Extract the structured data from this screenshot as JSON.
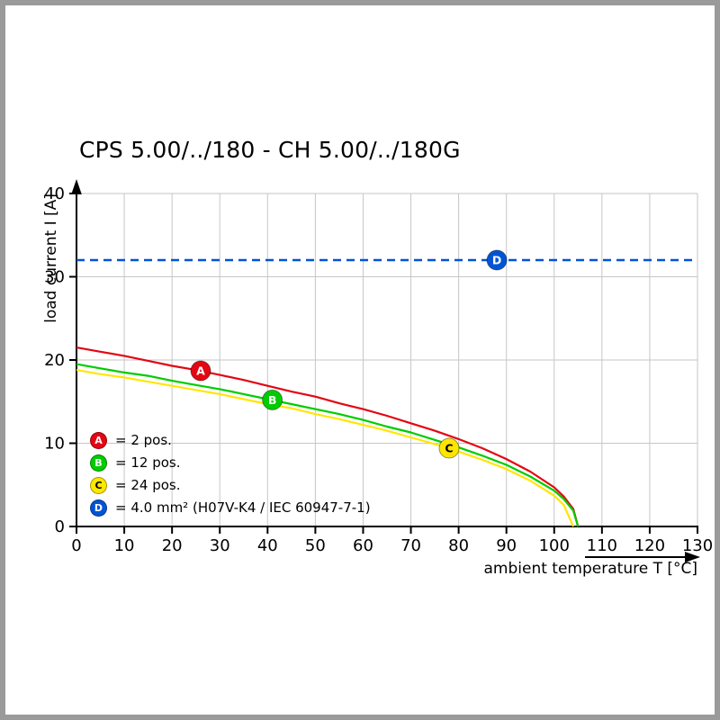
{
  "title": "CPS 5.00/../180 - CH 5.00/../180G",
  "chart_data": {
    "type": "line",
    "title": "CPS 5.00/../180 - CH 5.00/../180G",
    "xlabel": "ambient temperature T [°C]",
    "ylabel": "load current I [A]",
    "xlim": [
      0,
      130
    ],
    "ylim": [
      0,
      40
    ],
    "x_ticks": [
      0,
      10,
      20,
      30,
      40,
      50,
      60,
      70,
      80,
      90,
      100,
      110,
      120,
      130
    ],
    "y_ticks": [
      0,
      10,
      20,
      30,
      40
    ],
    "grid": true,
    "grid_color": "#c6c6c6",
    "axis_color": "#000000",
    "series": [
      {
        "id": "A",
        "legend_label": "= 2 pos.",
        "color": "#e30613",
        "letter_color": "#ffffff",
        "line_style": "solid",
        "marker": {
          "x": 26,
          "y": 18.7
        },
        "points": [
          [
            0,
            21.5
          ],
          [
            5,
            21.0
          ],
          [
            10,
            20.5
          ],
          [
            15,
            19.9
          ],
          [
            20,
            19.3
          ],
          [
            25,
            18.8
          ],
          [
            30,
            18.2
          ],
          [
            35,
            17.6
          ],
          [
            40,
            16.9
          ],
          [
            45,
            16.2
          ],
          [
            50,
            15.6
          ],
          [
            55,
            14.8
          ],
          [
            60,
            14.1
          ],
          [
            65,
            13.3
          ],
          [
            70,
            12.4
          ],
          [
            75,
            11.5
          ],
          [
            80,
            10.5
          ],
          [
            85,
            9.4
          ],
          [
            90,
            8.1
          ],
          [
            95,
            6.6
          ],
          [
            100,
            4.7
          ],
          [
            102,
            3.6
          ],
          [
            104,
            2.1
          ],
          [
            105,
            0
          ]
        ]
      },
      {
        "id": "B",
        "legend_label": "= 12 pos.",
        "color": "#00cc00",
        "letter_color": "#ffffff",
        "line_style": "solid",
        "marker": {
          "x": 41,
          "y": 15.2
        },
        "points": [
          [
            0,
            19.5
          ],
          [
            5,
            19.0
          ],
          [
            10,
            18.5
          ],
          [
            15,
            18.1
          ],
          [
            20,
            17.5
          ],
          [
            25,
            17.0
          ],
          [
            30,
            16.5
          ],
          [
            35,
            15.9
          ],
          [
            40,
            15.3
          ],
          [
            45,
            14.7
          ],
          [
            50,
            14.1
          ],
          [
            55,
            13.5
          ],
          [
            60,
            12.8
          ],
          [
            65,
            12.0
          ],
          [
            70,
            11.3
          ],
          [
            75,
            10.4
          ],
          [
            80,
            9.5
          ],
          [
            85,
            8.5
          ],
          [
            90,
            7.4
          ],
          [
            95,
            6.0
          ],
          [
            100,
            4.3
          ],
          [
            102,
            3.3
          ],
          [
            104,
            1.9
          ],
          [
            105,
            0
          ]
        ]
      },
      {
        "id": "C",
        "legend_label": "= 24 pos.",
        "color": "#ffe600",
        "letter_color": "#000000",
        "line_style": "solid",
        "marker": {
          "x": 78,
          "y": 9.4
        },
        "points": [
          [
            0,
            18.8
          ],
          [
            5,
            18.3
          ],
          [
            10,
            17.9
          ],
          [
            15,
            17.4
          ],
          [
            20,
            16.9
          ],
          [
            25,
            16.4
          ],
          [
            30,
            15.9
          ],
          [
            35,
            15.3
          ],
          [
            40,
            14.7
          ],
          [
            45,
            14.2
          ],
          [
            50,
            13.5
          ],
          [
            55,
            12.9
          ],
          [
            60,
            12.2
          ],
          [
            65,
            11.5
          ],
          [
            70,
            10.7
          ],
          [
            75,
            9.9
          ],
          [
            80,
            9.0
          ],
          [
            85,
            8.0
          ],
          [
            90,
            6.9
          ],
          [
            95,
            5.5
          ],
          [
            100,
            3.7
          ],
          [
            102,
            2.6
          ],
          [
            104,
            0
          ]
        ]
      },
      {
        "id": "D",
        "legend_label": "= 4.0 mm² (H07V-K4 / IEC 60947-7-1)",
        "color": "#0055d4",
        "letter_color": "#ffffff",
        "line_style": "dashed",
        "constant_y": 32,
        "marker": {
          "x": 88,
          "y": 32
        }
      }
    ]
  }
}
